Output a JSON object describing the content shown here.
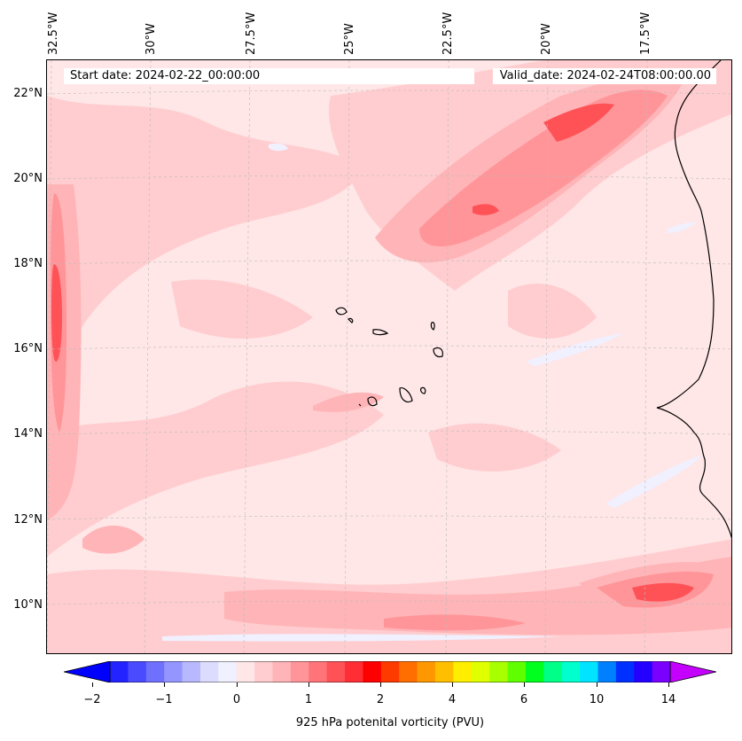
{
  "start_date": "Start date: 2024-02-22_00:00:00",
  "valid_date": "Valid_date: 2024-02-24T08:00:00.00",
  "lon_labels": [
    "32.5°W",
    "30°W",
    "27.5°W",
    "25°W",
    "22.5°W",
    "20°W",
    "17.5°W"
  ],
  "lat_labels": [
    "22°N",
    "20°N",
    "18°N",
    "16°N",
    "14°N",
    "12°N",
    "10°N"
  ],
  "colorbar": {
    "label": "925 hPa potenital vorticity (PVU)",
    "ticks": [
      "−2",
      "−1",
      "0",
      "1",
      "2",
      "4",
      "6",
      "10",
      "14"
    ],
    "colors": [
      "#0000ff",
      "#2323ff",
      "#4a4aff",
      "#7070ff",
      "#9595ff",
      "#b8b8ff",
      "#dcdcff",
      "#f0f0ff",
      "#ffe6e7",
      "#ffcdcf",
      "#ffb4b7",
      "#ff9599",
      "#ff7478",
      "#ff5257",
      "#ff2e34",
      "#ff0000",
      "#ff3a00",
      "#ff6e00",
      "#ff9800",
      "#ffbf00",
      "#ffee00",
      "#e0ff00",
      "#a8ff00",
      "#60ff00",
      "#00ff1e",
      "#00ff88",
      "#00ffcc",
      "#00e4ff",
      "#0080ff",
      "#0030ff",
      "#2400ff",
      "#7a00ff",
      "#c400ff"
    ]
  },
  "colors": {
    "pv_0_05": "#ffe6e7",
    "pv_05_1": "#ffcdcf",
    "pv_1_13": "#ffb4b7",
    "pv_13_16": "#ff9599",
    "pv_16_2": "#ff5257",
    "pv_negative": "#f0f0ff"
  }
}
